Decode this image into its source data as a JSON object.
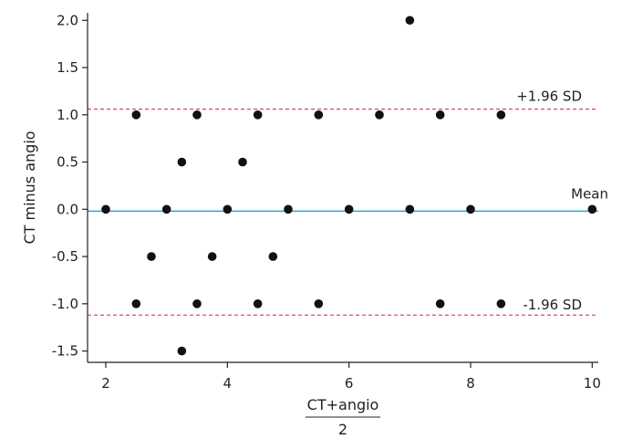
{
  "chart_data": {
    "type": "scatter",
    "xlabel_numerator": "CT+angio",
    "xlabel_denominator": "2",
    "ylabel": "CT minus angio",
    "xlim": [
      1.7,
      10.1
    ],
    "ylim": [
      -1.62,
      2.08
    ],
    "x_ticks": [
      2,
      4,
      6,
      8,
      10
    ],
    "y_ticks": [
      -1.5,
      -1.0,
      -0.5,
      0.0,
      0.5,
      1.0,
      1.5,
      2.0
    ],
    "y_tick_labels": [
      "-1.5",
      "-1.0",
      "-0.5",
      "0.0",
      "0.5",
      "1.0",
      "1.5",
      "2.0"
    ],
    "grid": false,
    "mean": {
      "value": -0.02,
      "label": "Mean",
      "color": "#29a3d9"
    },
    "upper_limit": {
      "value": 1.06,
      "label": "+1.96 SD",
      "color": "#e0505a"
    },
    "lower_limit": {
      "value": -1.12,
      "label": "-1.96 SD",
      "color": "#e0505a"
    },
    "points": [
      {
        "x": 7,
        "y": 2
      },
      {
        "x": 2.5,
        "y": 1
      },
      {
        "x": 3.5,
        "y": 1
      },
      {
        "x": 4.5,
        "y": 1
      },
      {
        "x": 5.5,
        "y": 1
      },
      {
        "x": 6.5,
        "y": 1
      },
      {
        "x": 7.5,
        "y": 1
      },
      {
        "x": 8.5,
        "y": 1
      },
      {
        "x": 3.25,
        "y": 0.5
      },
      {
        "x": 4.25,
        "y": 0.5
      },
      {
        "x": 2,
        "y": 0
      },
      {
        "x": 3,
        "y": 0
      },
      {
        "x": 4,
        "y": 0
      },
      {
        "x": 5,
        "y": 0
      },
      {
        "x": 6,
        "y": 0
      },
      {
        "x": 7,
        "y": 0
      },
      {
        "x": 8,
        "y": 0
      },
      {
        "x": 10,
        "y": 0
      },
      {
        "x": 2.75,
        "y": -0.5
      },
      {
        "x": 3.75,
        "y": -0.5
      },
      {
        "x": 4.75,
        "y": -0.5
      },
      {
        "x": 2.5,
        "y": -1
      },
      {
        "x": 3.5,
        "y": -1
      },
      {
        "x": 4.5,
        "y": -1
      },
      {
        "x": 5.5,
        "y": -1
      },
      {
        "x": 7.5,
        "y": -1
      },
      {
        "x": 8.5,
        "y": -1
      },
      {
        "x": 3.25,
        "y": -1.5
      }
    ]
  }
}
